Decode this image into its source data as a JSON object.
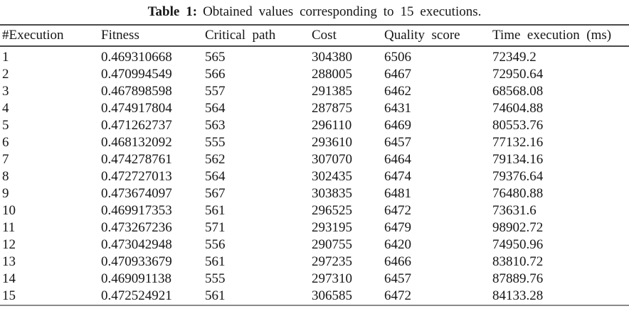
{
  "caption": {
    "label": "Table 1:",
    "text": "Obtained values corresponding to 15 executions."
  },
  "table": {
    "headers": [
      "#Execution",
      "Fitness",
      "Critical path",
      "Cost",
      "Quality score",
      "Time execution (ms)"
    ],
    "column_keys": [
      "execution",
      "fitness",
      "critical-path",
      "cost",
      "quality-score",
      "time-execution"
    ],
    "rows": [
      [
        "1",
        "0.469310668",
        "565",
        "304380",
        "6506",
        "72349.2"
      ],
      [
        "2",
        "0.470994549",
        "566",
        "288005",
        "6467",
        "72950.64"
      ],
      [
        "3",
        "0.467898598",
        "557",
        "291385",
        "6462",
        "68568.08"
      ],
      [
        "4",
        "0.474917804",
        "564",
        "287875",
        "6431",
        "74604.88"
      ],
      [
        "5",
        "0.471262737",
        "563",
        "296110",
        "6469",
        "80553.76"
      ],
      [
        "6",
        "0.468132092",
        "555",
        "293610",
        "6457",
        "77132.16"
      ],
      [
        "7",
        "0.474278761",
        "562",
        "307070",
        "6464",
        "79134.16"
      ],
      [
        "8",
        "0.472727013",
        "564",
        "302435",
        "6474",
        "79376.64"
      ],
      [
        "9",
        "0.473674097",
        "567",
        "303835",
        "6481",
        "76480.88"
      ],
      [
        "10",
        "0.469917353",
        "561",
        "296525",
        "6472",
        "73631.6"
      ],
      [
        "11",
        "0.473267236",
        "571",
        "293195",
        "6479",
        "98902.72"
      ],
      [
        "12",
        "0.473042948",
        "556",
        "290755",
        "6420",
        "74950.96"
      ],
      [
        "13",
        "0.470933679",
        "561",
        "297235",
        "6466",
        "83810.72"
      ],
      [
        "14",
        "0.469091138",
        "555",
        "297310",
        "6457",
        "87889.76"
      ],
      [
        "15",
        "0.472524921",
        "561",
        "306585",
        "6472",
        "84133.28"
      ]
    ]
  },
  "colors": {
    "background": "#ffffff",
    "text": "#161616",
    "rule": "#4a4a4a"
  }
}
